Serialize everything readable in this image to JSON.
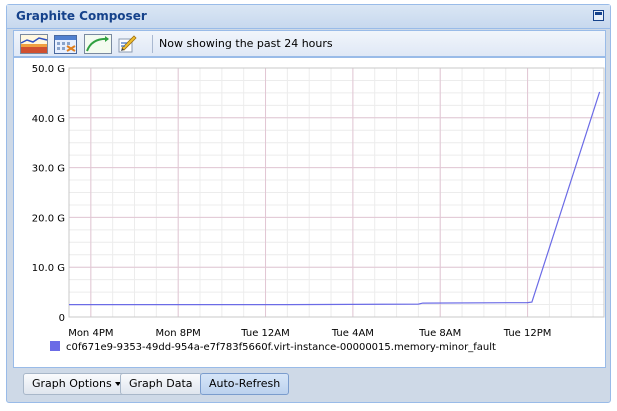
{
  "window": {
    "title": "Graphite Composer"
  },
  "toolbar": {
    "status_text": "Now showing the past 24 hours",
    "icons": [
      "dashboard-icon",
      "calendar-select-icon",
      "recent-data-icon",
      "edit-target-icon"
    ]
  },
  "buttons": {
    "graph_options": "Graph Options",
    "graph_data": "Graph Data",
    "auto_refresh": "Auto-Refresh"
  },
  "colors": {
    "series": "#6b6be6",
    "grid_major": "#e2c6d4",
    "grid_minor": "#ececec"
  },
  "chart_data": {
    "type": "line",
    "title": "",
    "xlabel": "",
    "ylabel": "",
    "ylim": [
      0,
      50
    ],
    "yticks": [
      0,
      10,
      20,
      30,
      40,
      50
    ],
    "ytick_labels": [
      "0",
      "10.0 G",
      "20.0 G",
      "30.0 G",
      "40.0 G",
      "50.0 G"
    ],
    "xticks": [
      1,
      5,
      9,
      13,
      17,
      21
    ],
    "xtick_labels": [
      "Mon  4PM",
      "Mon  8PM",
      "Tue 12AM",
      "Tue  4AM",
      "Tue  8AM",
      "Tue 12PM"
    ],
    "xlim": [
      0,
      24.5
    ],
    "grid": true,
    "legend_placement": "bottom-left",
    "series": [
      {
        "name": "c0f671e9-9353-49dd-954a-e7f783f5660f.virt-instance-00000015.memory-minor_fault",
        "x": [
          0,
          5,
          10,
          16,
          16.2,
          21,
          21.2,
          24.3
        ],
        "y": [
          2.5,
          2.5,
          2.5,
          2.6,
          2.8,
          2.9,
          3.0,
          45.2
        ]
      }
    ]
  }
}
